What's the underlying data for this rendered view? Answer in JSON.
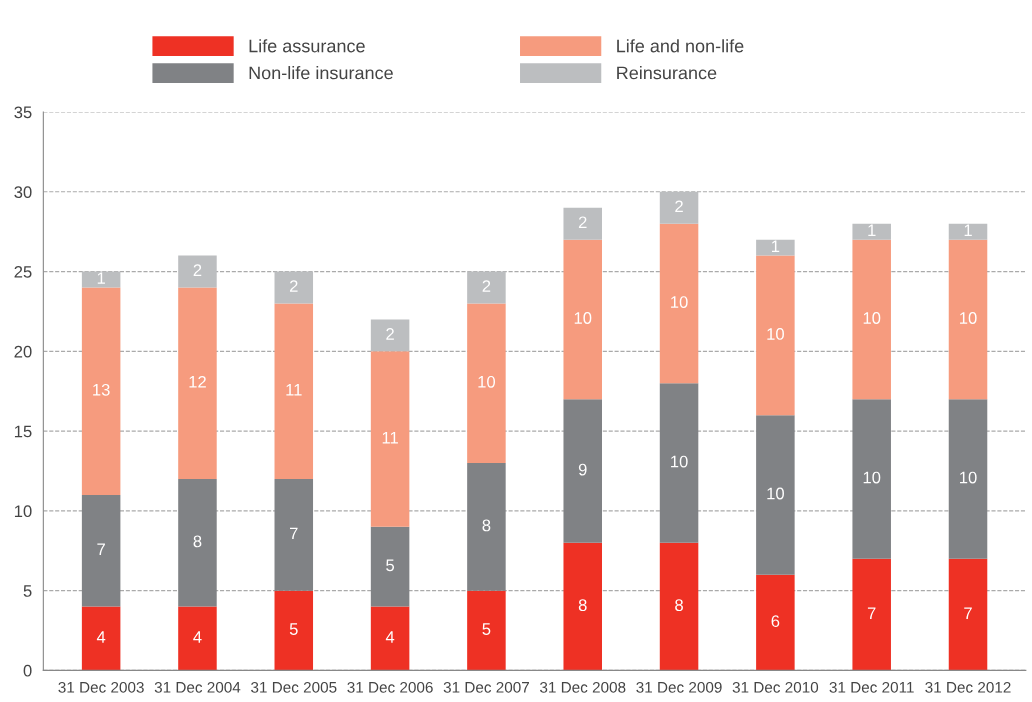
{
  "chart_data": {
    "type": "bar",
    "stacked": true,
    "data_labels": true,
    "grid": "y",
    "legend": "top",
    "categories": [
      "31 Dec 2003",
      "31 Dec 2004",
      "31 Dec 2005",
      "31 Dec 2006",
      "31 Dec 2007",
      "31 Dec 2008",
      "31 Dec 2009",
      "31 Dec 2010",
      "31 Dec 2011",
      "31 Dec 2012"
    ],
    "ylim": [
      0,
      35
    ],
    "yticks": [
      0,
      5,
      10,
      15,
      20,
      25,
      30,
      35
    ],
    "series": [
      {
        "name": "Life assurance",
        "color": "#ee3124",
        "values": [
          4,
          4,
          5,
          4,
          5,
          8,
          8,
          6,
          7,
          7
        ]
      },
      {
        "name": "Non-life insurance",
        "color": "#808285",
        "values": [
          7,
          8,
          7,
          5,
          8,
          9,
          10,
          10,
          10,
          10
        ]
      },
      {
        "name": "Life and non-life",
        "color": "#f69b7e",
        "values": [
          13,
          12,
          11,
          11,
          10,
          10,
          10,
          10,
          10,
          10
        ]
      },
      {
        "name": "Reinsurance",
        "color": "#bcbec0",
        "values": [
          1,
          2,
          2,
          2,
          2,
          2,
          2,
          1,
          1,
          1
        ]
      }
    ]
  }
}
